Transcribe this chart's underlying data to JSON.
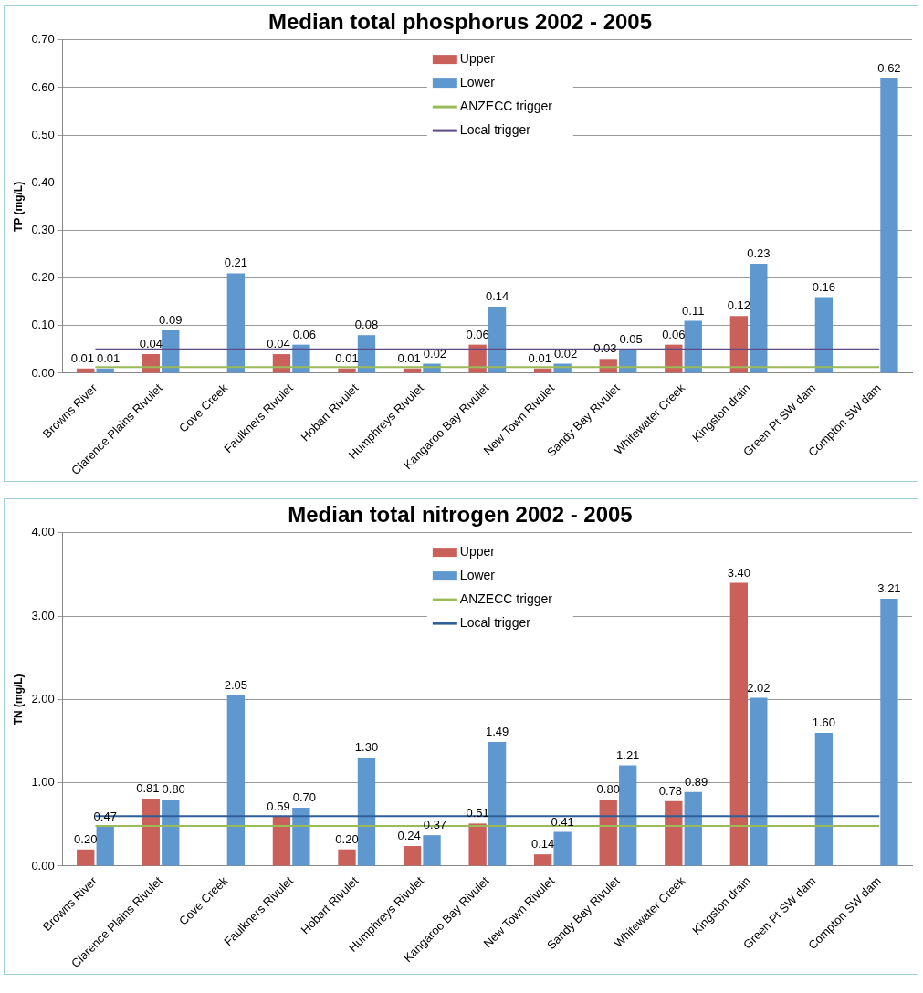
{
  "chart_data": [
    {
      "type": "bar",
      "title": "Median total phosphorus 2002 - 2005",
      "ylabel": "TP (mg/L)",
      "categories": [
        "Browns River",
        "Clarence Plains Rivulet",
        "Cove Creek",
        "Faulkners Rivulet",
        "Hobart Rivulet",
        "Humphreys Rivulet",
        "Kangaroo Bay Rivulet",
        "New Town Rivulet",
        "Sandy Bay Rivulet",
        "Whitewater Creek",
        "Kingston drain",
        "Green Pt SW dam",
        "Compton SW dam"
      ],
      "series": [
        {
          "name": "Upper",
          "color": "#c9605a",
          "values": [
            0.01,
            0.04,
            null,
            0.04,
            0.01,
            0.01,
            0.06,
            0.01,
            0.03,
            0.06,
            0.12,
            null,
            null
          ],
          "value_labels": [
            "0.01",
            "0.04",
            null,
            "0.04",
            "0.01",
            "0.01",
            "0.06",
            "0.01",
            "0.03",
            "0.06",
            "0.12",
            null,
            null
          ]
        },
        {
          "name": "Lower",
          "color": "#5f97cf",
          "values": [
            0.01,
            0.09,
            0.21,
            0.06,
            0.08,
            0.02,
            0.14,
            0.02,
            0.05,
            0.11,
            0.23,
            0.16,
            0.62
          ],
          "value_labels": [
            "0.01",
            "0.09",
            "0.21",
            "0.06",
            "0.08",
            "0.02",
            "0.14",
            "0.02",
            "0.05",
            "0.11",
            "0.23",
            "0.16",
            "0.62"
          ]
        },
        {
          "name": "ANZECC trigger",
          "type": "line",
          "color": "#9bbb59",
          "values": [
            0.013,
            0.013,
            0.013,
            0.013,
            0.013,
            0.013,
            0.013,
            0.013,
            0.013,
            0.013,
            0.013,
            0.013,
            0.013
          ]
        },
        {
          "name": "Local trigger",
          "type": "line",
          "color": "#5e4a86",
          "values": [
            0.05,
            0.05,
            0.05,
            0.05,
            0.05,
            0.05,
            0.05,
            0.05,
            0.05,
            0.05,
            0.05,
            0.05,
            0.05
          ]
        }
      ],
      "ylim": [
        0,
        0.7
      ],
      "yticks": [
        {
          "value": 0,
          "label": "0.00"
        },
        {
          "value": 0.1,
          "label": "0.10"
        },
        {
          "value": 0.2,
          "label": "0.20"
        },
        {
          "value": 0.3,
          "label": "0.30"
        },
        {
          "value": 0.4,
          "label": "0.40"
        },
        {
          "value": 0.5,
          "label": "0.50"
        },
        {
          "value": 0.6,
          "label": "0.60"
        },
        {
          "value": 0.7,
          "label": "0.70"
        }
      ],
      "grid": "y",
      "legend": "top"
    },
    {
      "type": "bar",
      "title": "Median total nitrogen 2002 - 2005",
      "ylabel": "TN (mg/L)",
      "categories": [
        "Browns River",
        "Clarence Plains Rivulet",
        "Cove Creek",
        "Faulkners Rivulet",
        "Hobart Rivulet",
        "Humphreys Rivulet",
        "Kangaroo Bay Rivulet",
        "New Town Rivulet",
        "Sandy Bay Rivulet",
        "Whitewater Creek",
        "Kingston drain",
        "Green Pt SW dam",
        "Compton SW dam"
      ],
      "series": [
        {
          "name": "Upper",
          "color": "#c9605a",
          "values": [
            0.2,
            0.81,
            null,
            0.59,
            0.2,
            0.24,
            0.51,
            0.14,
            0.8,
            0.78,
            3.4,
            null,
            null
          ],
          "value_labels": [
            "0.20",
            "0.81",
            null,
            "0.59",
            "0.20",
            "0.24",
            "0.51",
            "0.14",
            "0.80",
            "0.78",
            "3.40",
            null,
            null
          ]
        },
        {
          "name": "Lower",
          "color": "#5f97cf",
          "values": [
            0.47,
            0.8,
            2.05,
            0.7,
            1.3,
            0.37,
            1.49,
            0.41,
            1.21,
            0.89,
            2.02,
            1.6,
            3.21
          ],
          "value_labels": [
            "0.47",
            "0.80",
            "2.05",
            "0.70",
            "1.30",
            "0.37",
            "1.49",
            "0.41",
            "1.21",
            "0.89",
            "2.02",
            "1.60",
            "3.21"
          ]
        },
        {
          "name": "ANZECC trigger",
          "type": "line",
          "color": "#9bbb59",
          "values": [
            0.48,
            0.48,
            0.48,
            0.48,
            0.48,
            0.48,
            0.48,
            0.48,
            0.48,
            0.48,
            0.48,
            0.48,
            0.48
          ]
        },
        {
          "name": "Local trigger",
          "type": "line",
          "color": "#2f5f98",
          "values": [
            0.6,
            0.6,
            0.6,
            0.6,
            0.6,
            0.6,
            0.6,
            0.6,
            0.6,
            0.6,
            0.6,
            0.6,
            0.6
          ]
        }
      ],
      "ylim": [
        0,
        4
      ],
      "yticks": [
        {
          "value": 0,
          "label": "0.00"
        },
        {
          "value": 1,
          "label": "1.00"
        },
        {
          "value": 2,
          "label": "2.00"
        },
        {
          "value": 3,
          "label": "3.00"
        },
        {
          "value": 4,
          "label": "4.00"
        }
      ],
      "grid": "y",
      "legend": "top"
    }
  ]
}
